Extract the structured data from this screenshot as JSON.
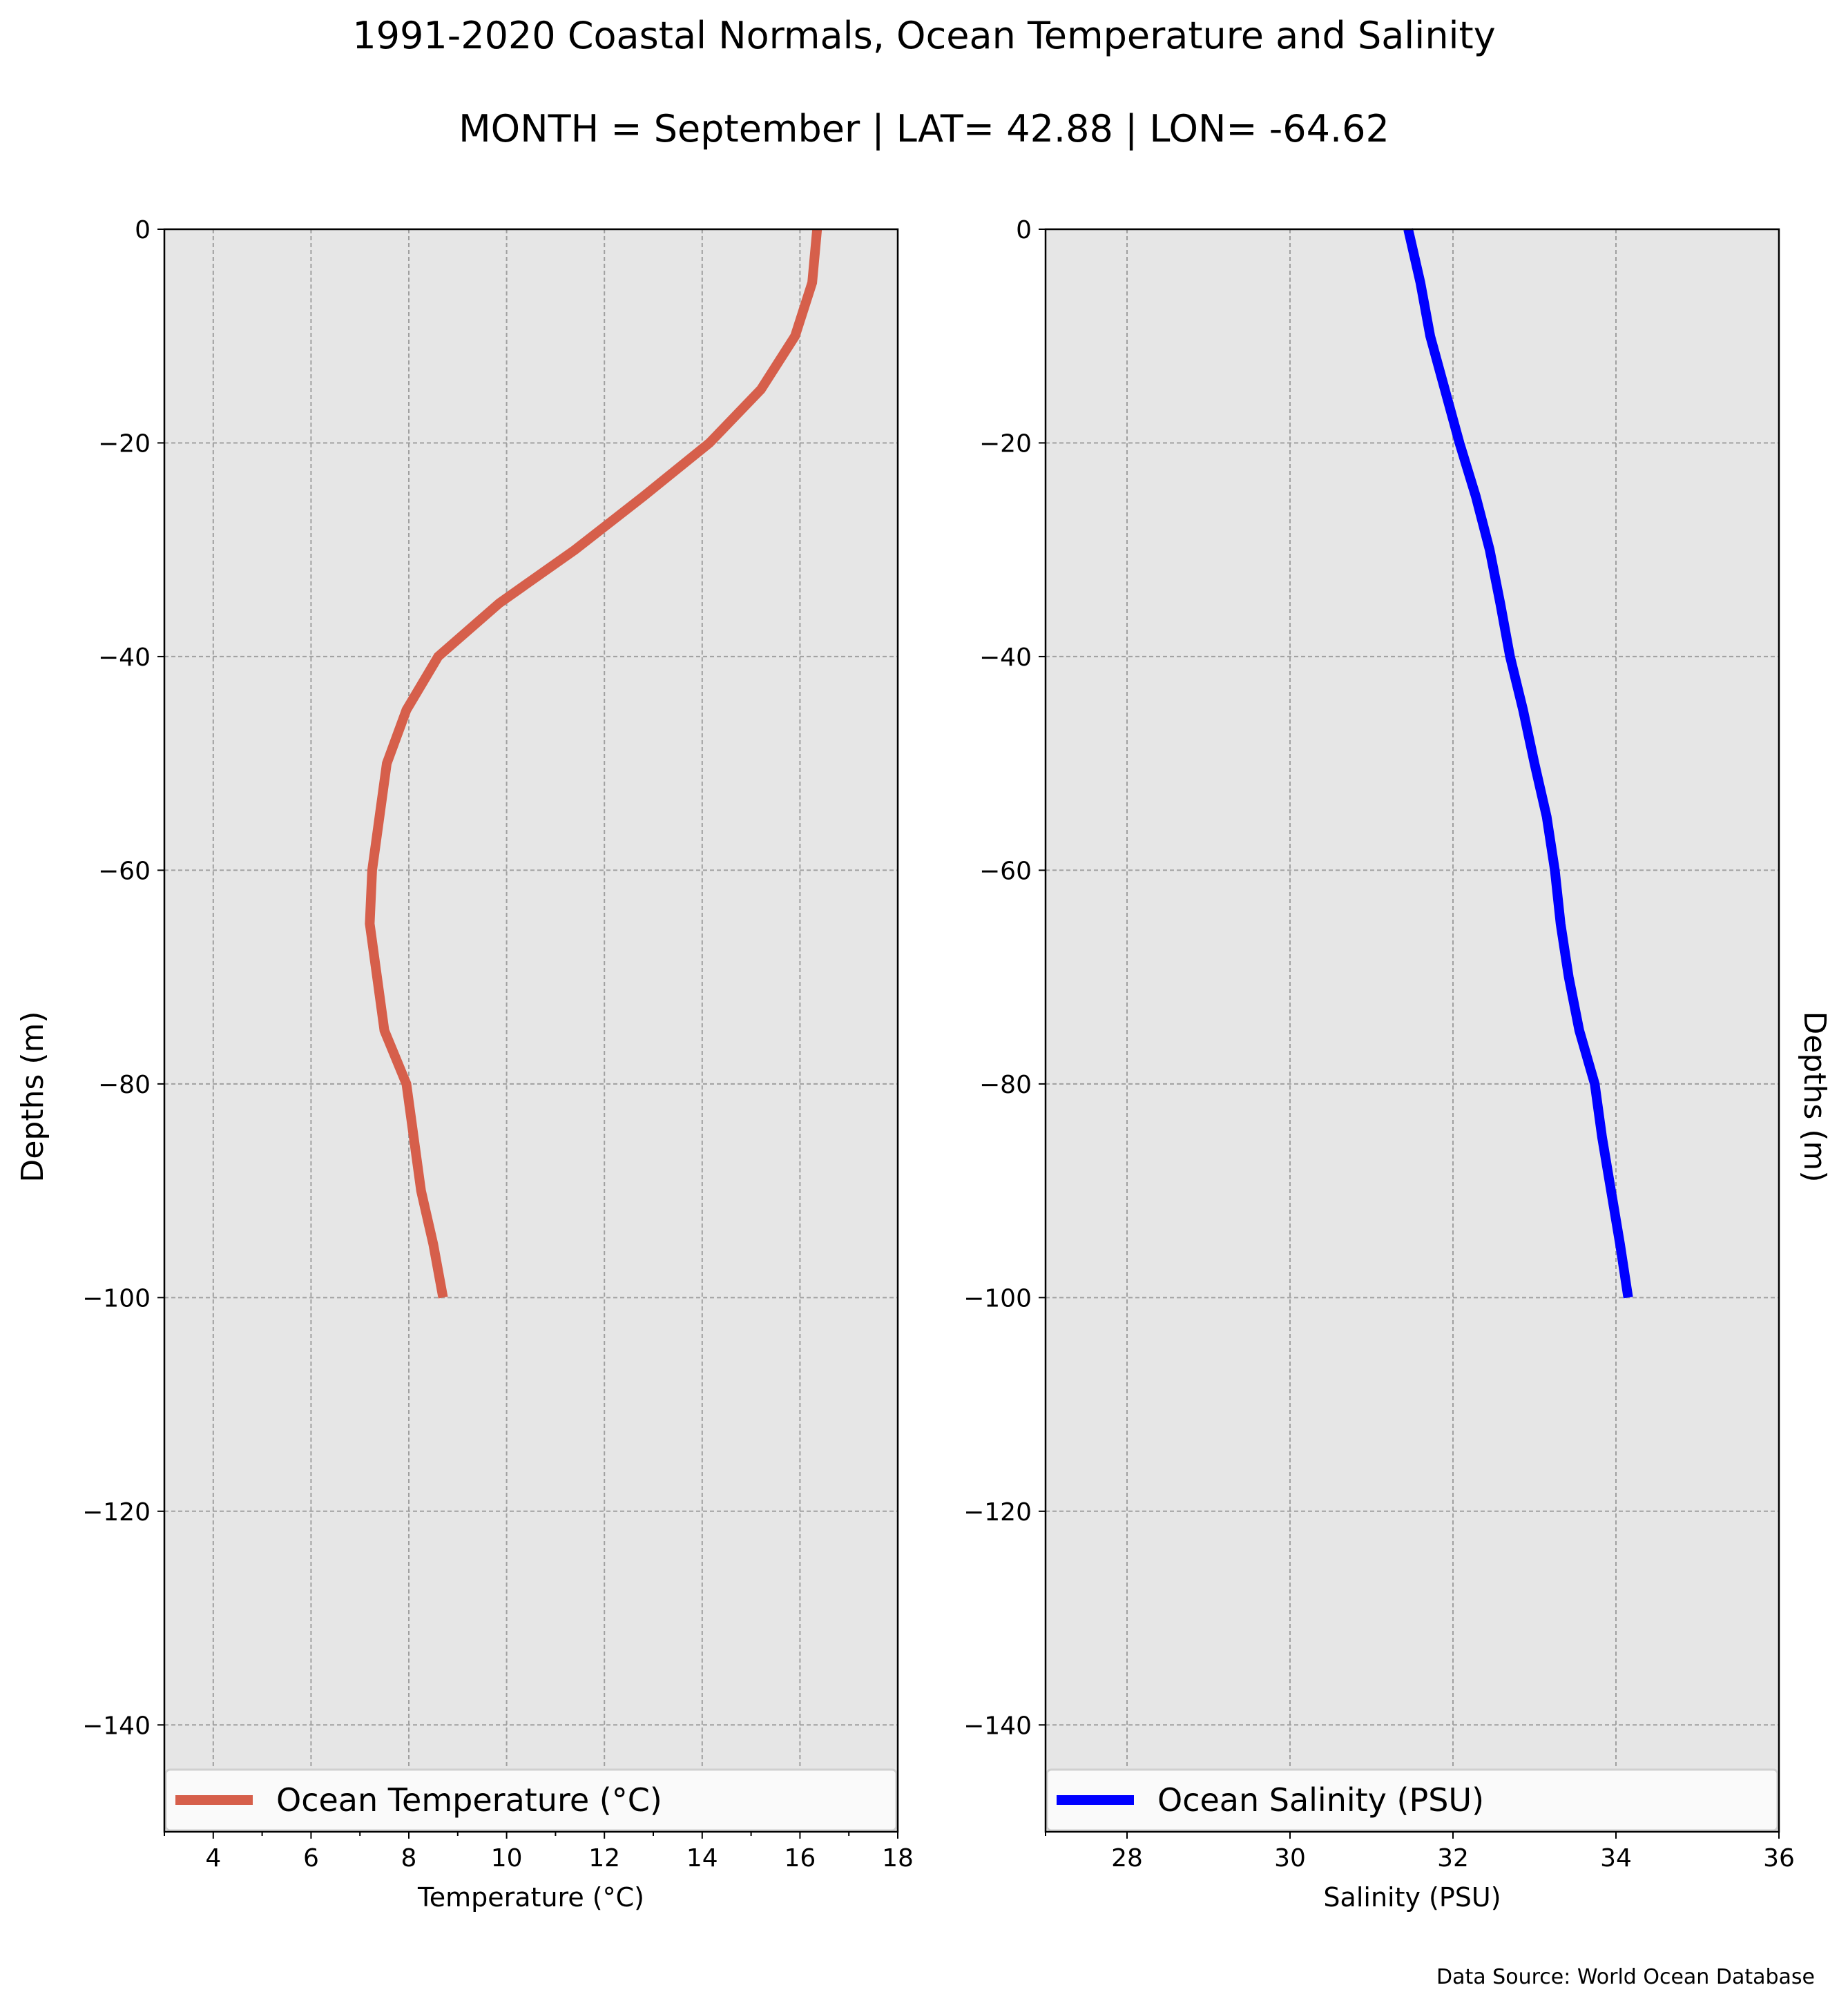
{
  "figure": {
    "title": "1991-2020 Coastal Normals, Ocean Temperature and Salinity",
    "subtitle": "MONTH = September | LAT= 42.88 | LON= -64.62",
    "source": "Data Source: World Ocean Database",
    "background": "#ffffff",
    "plot_background": "#e6e6e6"
  },
  "chart_data": [
    {
      "type": "line",
      "xlabel": "Temperature (°C)",
      "ylabel": "Depths (m)",
      "xlim": [
        3,
        18
      ],
      "ylim": [
        -150,
        0
      ],
      "xticks": [
        4,
        6,
        8,
        10,
        12,
        14,
        16,
        18
      ],
      "xtick_labels": [
        "4",
        "6",
        "8",
        "10",
        "12",
        "14",
        "16",
        "18"
      ],
      "minor_xticks": [
        3,
        5,
        7,
        9,
        11,
        13,
        15,
        17
      ],
      "yticks": [
        0,
        -20,
        -40,
        -60,
        -80,
        -100,
        -120,
        -140
      ],
      "ytick_labels": [
        "0",
        "−20",
        "−40",
        "−60",
        "−80",
        "−100",
        "−120",
        "−140"
      ],
      "grid": true,
      "legend_position": "bottom",
      "series": [
        {
          "name": "Ocean Temperature (°C)",
          "color": "#d65f4b",
          "x": [
            16.35,
            16.25,
            15.9,
            15.2,
            14.15,
            12.8,
            11.4,
            9.85,
            8.6,
            7.95,
            7.55,
            7.4,
            7.25,
            7.2,
            7.35,
            7.5,
            7.95,
            8.1,
            8.25,
            8.5,
            8.7
          ],
          "y": [
            0,
            -5,
            -10,
            -15,
            -20,
            -25,
            -30,
            -35,
            -40,
            -45,
            -50,
            -55,
            -60,
            -65,
            -70,
            -75,
            -80,
            -85,
            -90,
            -95,
            -100
          ]
        }
      ]
    },
    {
      "type": "line",
      "xlabel": "Salinity (PSU)",
      "ylabel": "Depths (m)",
      "xlim": [
        27,
        36
      ],
      "ylim": [
        -150,
        0
      ],
      "xticks": [
        28,
        30,
        32,
        34,
        36
      ],
      "xtick_labels": [
        "28",
        "30",
        "32",
        "34",
        "36"
      ],
      "minor_xticks": [
        27
      ],
      "yticks": [
        0,
        -20,
        -40,
        -60,
        -80,
        -100,
        -120,
        -140
      ],
      "ytick_labels": [
        "0",
        "−20",
        "−40",
        "−60",
        "−80",
        "−100",
        "−120",
        "−140"
      ],
      "grid": true,
      "legend_position": "bottom",
      "series": [
        {
          "name": "Ocean Salinity (PSU)",
          "color": "#0000ff",
          "x": [
            31.45,
            31.6,
            31.72,
            31.9,
            32.08,
            32.28,
            32.45,
            32.58,
            32.7,
            32.86,
            33.0,
            33.15,
            33.25,
            33.32,
            33.42,
            33.55,
            33.74,
            33.83,
            33.94,
            34.05,
            34.15
          ],
          "y": [
            0,
            -5,
            -10,
            -15,
            -20,
            -25,
            -30,
            -35,
            -40,
            -45,
            -50,
            -55,
            -60,
            -65,
            -70,
            -75,
            -80,
            -85,
            -90,
            -95,
            -100
          ]
        }
      ]
    }
  ]
}
